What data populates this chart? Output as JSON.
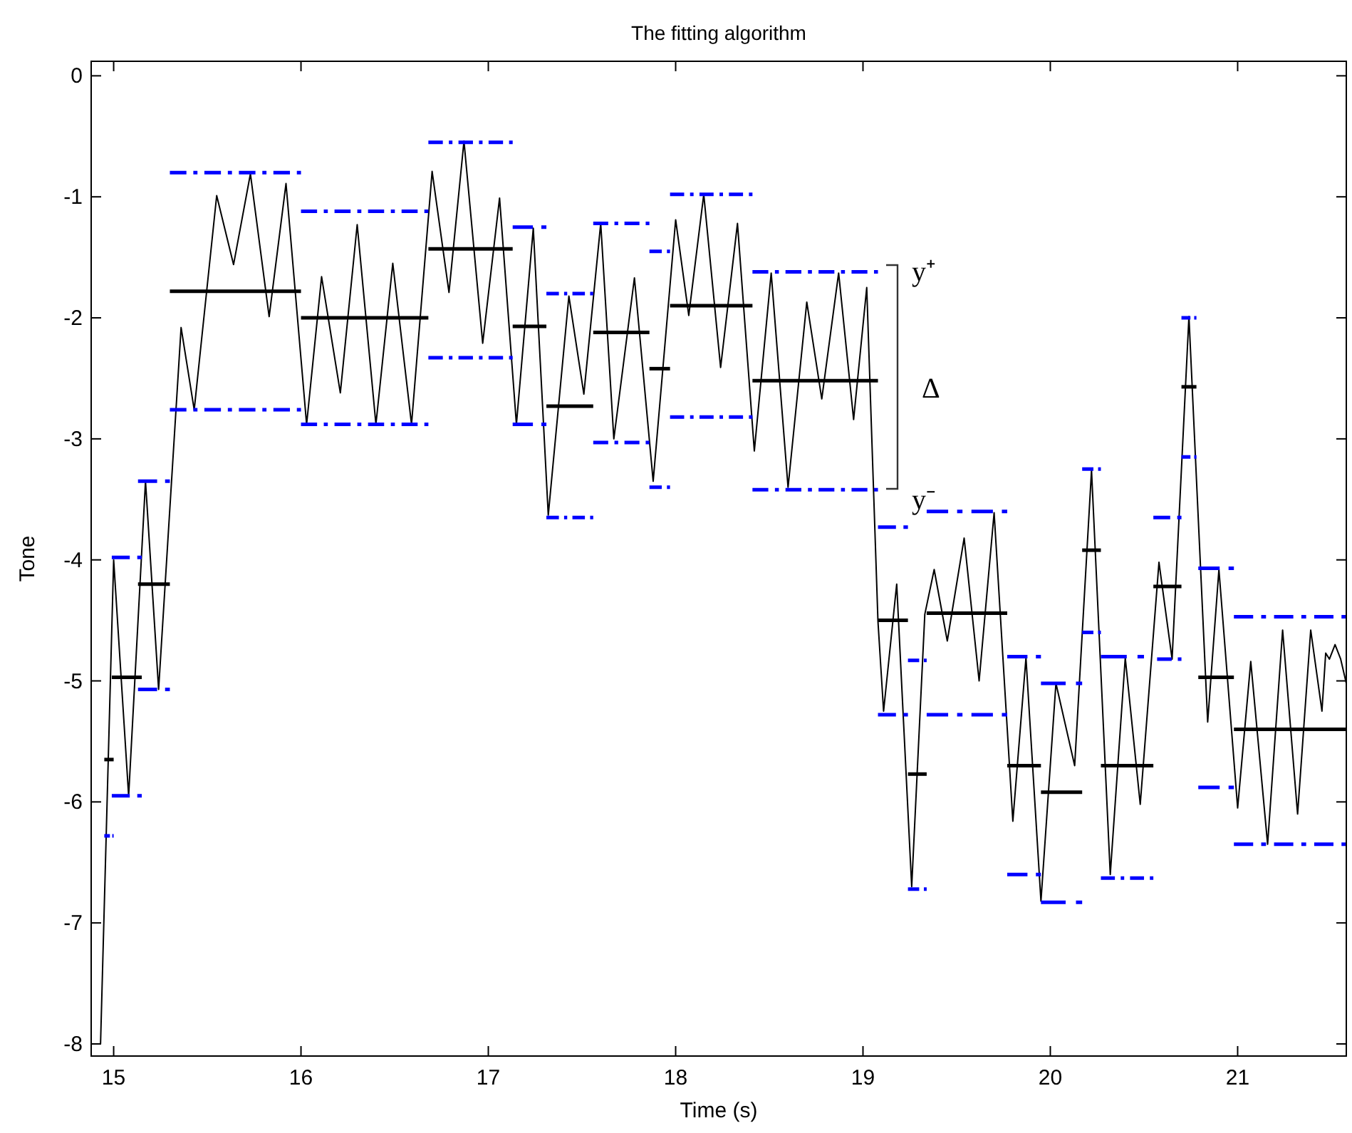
{
  "chart_data": {
    "type": "line",
    "title": "The fitting algorithm",
    "xlabel": "Time (s)",
    "ylabel": "Tone",
    "xlim": [
      14.88,
      21.58
    ],
    "xticks": [
      15,
      16,
      17,
      18,
      19,
      20,
      21
    ],
    "ylim": [
      -8.1,
      0.12
    ],
    "yticks": [
      -8,
      -7,
      -6,
      -5,
      -4,
      -3,
      -2,
      -1,
      0
    ],
    "marker": "none",
    "grid": false,
    "annotations": [
      "y⁺",
      "Δ",
      "y⁻"
    ],
    "series": [
      {
        "color": "#000000",
        "line_style": "solid",
        "x": [
          14.93,
          15.0,
          15.08,
          15.17,
          15.24,
          15.36,
          15.43,
          15.55,
          15.64,
          15.73,
          15.83,
          15.92,
          16.03,
          16.11,
          16.21,
          16.3,
          16.4,
          16.49,
          16.59,
          16.7,
          16.79,
          16.87,
          16.97,
          17.06,
          17.15,
          17.24,
          17.32,
          17.43,
          17.51,
          17.6,
          17.67,
          17.78,
          17.88,
          18.0,
          18.07,
          18.15,
          18.24,
          18.33,
          18.42,
          18.51,
          18.6,
          18.7,
          18.78,
          18.87,
          18.95,
          19.02,
          19.08,
          19.11,
          19.18,
          19.26,
          19.33,
          19.38,
          19.45,
          19.54,
          19.62,
          19.7,
          19.8,
          19.87,
          19.95,
          20.03,
          20.13,
          20.22,
          20.32,
          20.4,
          20.48,
          20.58,
          20.65,
          20.74,
          20.84,
          20.9,
          21.0,
          21.07,
          21.16,
          21.24,
          21.32,
          21.39,
          21.45,
          21.47,
          21.49,
          21.52,
          21.55,
          21.58
        ],
        "values": [
          -8.0,
          -4.0,
          -5.95,
          -3.35,
          -5.07,
          -2.08,
          -2.76,
          -0.99,
          -1.56,
          -0.81,
          -1.99,
          -0.89,
          -2.88,
          -1.66,
          -2.62,
          -1.23,
          -2.88,
          -1.55,
          -2.88,
          -0.79,
          -1.79,
          -0.54,
          -2.21,
          -1.01,
          -2.88,
          -1.26,
          -3.63,
          -1.82,
          -2.63,
          -1.22,
          -3.0,
          -1.67,
          -3.35,
          -1.19,
          -1.98,
          -0.98,
          -2.41,
          -1.22,
          -3.1,
          -1.63,
          -3.4,
          -1.87,
          -2.67,
          -1.63,
          -2.84,
          -1.75,
          -4.51,
          -5.25,
          -4.2,
          -6.7,
          -4.45,
          -4.08,
          -4.67,
          -3.82,
          -5.0,
          -3.61,
          -6.16,
          -4.81,
          -6.82,
          -5.02,
          -5.7,
          -3.26,
          -6.6,
          -4.81,
          -6.02,
          -4.02,
          -4.82,
          -1.99,
          -5.34,
          -4.08,
          -6.05,
          -4.84,
          -6.35,
          -4.58,
          -6.1,
          -4.58,
          -5.25,
          -4.77,
          -4.82,
          -4.7,
          -4.82,
          -5.02
        ]
      },
      {
        "color": "#000000",
        "line_style": "solid",
        "x": [
          14.95,
          15.0
        ],
        "values": [
          -5.65,
          -5.65
        ]
      },
      {
        "color": "#000000",
        "line_style": "solid",
        "x": [
          14.99,
          15.15
        ],
        "values": [
          -4.97,
          -4.97
        ]
      },
      {
        "color": "#000000",
        "line_style": "solid",
        "x": [
          15.13,
          15.3
        ],
        "values": [
          -4.2,
          -4.2
        ]
      },
      {
        "color": "#000000",
        "line_style": "solid",
        "x": [
          15.3,
          16.0
        ],
        "values": [
          -1.78,
          -1.78
        ]
      },
      {
        "color": "#000000",
        "line_style": "solid",
        "x": [
          16.0,
          16.68
        ],
        "values": [
          -2.0,
          -2.0
        ]
      },
      {
        "color": "#000000",
        "line_style": "solid",
        "x": [
          16.68,
          17.13
        ],
        "values": [
          -1.43,
          -1.43
        ]
      },
      {
        "color": "#000000",
        "line_style": "solid",
        "x": [
          17.13,
          17.31
        ],
        "values": [
          -2.07,
          -2.07
        ]
      },
      {
        "color": "#000000",
        "line_style": "solid",
        "x": [
          17.31,
          17.56
        ],
        "values": [
          -2.73,
          -2.73
        ]
      },
      {
        "color": "#000000",
        "line_style": "solid",
        "x": [
          17.56,
          17.86
        ],
        "values": [
          -2.12,
          -2.12
        ]
      },
      {
        "color": "#000000",
        "line_style": "solid",
        "x": [
          17.86,
          17.97
        ],
        "values": [
          -2.42,
          -2.42
        ]
      },
      {
        "color": "#000000",
        "line_style": "solid",
        "x": [
          17.97,
          18.41
        ],
        "values": [
          -1.9,
          -1.9
        ]
      },
      {
        "color": "#000000",
        "line_style": "solid",
        "x": [
          18.41,
          19.08
        ],
        "values": [
          -2.52,
          -2.52
        ]
      },
      {
        "color": "#000000",
        "line_style": "solid",
        "x": [
          19.08,
          19.24
        ],
        "values": [
          -4.5,
          -4.5
        ]
      },
      {
        "color": "#000000",
        "line_style": "solid",
        "x": [
          19.24,
          19.34
        ],
        "values": [
          -5.77,
          -5.77
        ]
      },
      {
        "color": "#000000",
        "line_style": "solid",
        "x": [
          19.34,
          19.77
        ],
        "values": [
          -4.44,
          -4.44
        ]
      },
      {
        "color": "#000000",
        "line_style": "solid",
        "x": [
          19.77,
          19.95
        ],
        "values": [
          -5.7,
          -5.7
        ]
      },
      {
        "color": "#000000",
        "line_style": "solid",
        "x": [
          19.95,
          20.17
        ],
        "values": [
          -5.92,
          -5.92
        ]
      },
      {
        "color": "#000000",
        "line_style": "solid",
        "x": [
          20.17,
          20.27
        ],
        "values": [
          -3.92,
          -3.92
        ]
      },
      {
        "color": "#000000",
        "line_style": "solid",
        "x": [
          20.27,
          20.55
        ],
        "values": [
          -5.7,
          -5.7
        ]
      },
      {
        "color": "#000000",
        "line_style": "solid",
        "x": [
          20.55,
          20.7
        ],
        "values": [
          -4.22,
          -4.22
        ]
      },
      {
        "color": "#000000",
        "line_style": "solid",
        "x": [
          20.7,
          20.78
        ],
        "values": [
          -2.57,
          -2.57
        ]
      },
      {
        "color": "#000000",
        "line_style": "solid",
        "x": [
          20.79,
          20.98
        ],
        "values": [
          -4.97,
          -4.97
        ]
      },
      {
        "color": "#000000",
        "line_style": "solid",
        "x": [
          20.98,
          21.58
        ],
        "values": [
          -5.4,
          -5.4
        ]
      },
      {
        "color": "#0000ff",
        "line_style": "dashed",
        "x": [
          14.99,
          15.15
        ],
        "values": [
          -3.98,
          -3.98
        ]
      },
      {
        "color": "#0000ff",
        "line_style": "dashed",
        "x": [
          15.13,
          15.3
        ],
        "values": [
          -3.35,
          -3.35
        ]
      },
      {
        "color": "#0000ff",
        "line_style": "dashed",
        "x": [
          15.3,
          16.0
        ],
        "values": [
          -0.8,
          -0.8
        ]
      },
      {
        "color": "#0000ff",
        "line_style": "dashed",
        "x": [
          16.0,
          16.68
        ],
        "values": [
          -1.12,
          -1.12
        ]
      },
      {
        "color": "#0000ff",
        "line_style": "dashed",
        "x": [
          16.68,
          17.13
        ],
        "values": [
          -0.55,
          -0.55
        ]
      },
      {
        "color": "#0000ff",
        "line_style": "dashed",
        "x": [
          17.13,
          17.31
        ],
        "values": [
          -1.25,
          -1.25
        ]
      },
      {
        "color": "#0000ff",
        "line_style": "dashed",
        "x": [
          17.31,
          17.56
        ],
        "values": [
          -1.8,
          -1.8
        ]
      },
      {
        "color": "#0000ff",
        "line_style": "dashed",
        "x": [
          17.56,
          17.86
        ],
        "values": [
          -1.22,
          -1.22
        ]
      },
      {
        "color": "#0000ff",
        "line_style": "dashed",
        "x": [
          17.86,
          17.97
        ],
        "values": [
          -1.45,
          -1.45
        ]
      },
      {
        "color": "#0000ff",
        "line_style": "dashed",
        "x": [
          17.97,
          18.41
        ],
        "values": [
          -0.98,
          -0.98
        ]
      },
      {
        "color": "#0000ff",
        "line_style": "dashed",
        "x": [
          18.41,
          19.08
        ],
        "values": [
          -1.62,
          -1.62
        ]
      },
      {
        "color": "#0000ff",
        "line_style": "dashed",
        "x": [
          19.08,
          19.24
        ],
        "values": [
          -3.73,
          -3.73
        ]
      },
      {
        "color": "#0000ff",
        "line_style": "dashed",
        "x": [
          19.24,
          19.34
        ],
        "values": [
          -4.83,
          -4.83
        ]
      },
      {
        "color": "#0000ff",
        "line_style": "dashed",
        "x": [
          19.34,
          19.77
        ],
        "values": [
          -3.6,
          -3.6
        ]
      },
      {
        "color": "#0000ff",
        "line_style": "dashed",
        "x": [
          19.77,
          19.95
        ],
        "values": [
          -4.8,
          -4.8
        ]
      },
      {
        "color": "#0000ff",
        "line_style": "dashed",
        "x": [
          19.95,
          20.17
        ],
        "values": [
          -5.02,
          -5.02
        ]
      },
      {
        "color": "#0000ff",
        "line_style": "dashed",
        "x": [
          20.17,
          20.27
        ],
        "values": [
          -3.25,
          -3.25
        ]
      },
      {
        "color": "#0000ff",
        "line_style": "dashed",
        "x": [
          20.27,
          20.5
        ],
        "values": [
          -4.8,
          -4.8
        ]
      },
      {
        "color": "#0000ff",
        "line_style": "dashed",
        "x": [
          20.55,
          20.7
        ],
        "values": [
          -3.65,
          -3.65
        ]
      },
      {
        "color": "#0000ff",
        "line_style": "dashed",
        "x": [
          20.7,
          20.78
        ],
        "values": [
          -2.0,
          -2.0
        ]
      },
      {
        "color": "#0000ff",
        "line_style": "dashed",
        "x": [
          20.79,
          20.98
        ],
        "values": [
          -4.07,
          -4.07
        ]
      },
      {
        "color": "#0000ff",
        "line_style": "dashed",
        "x": [
          20.98,
          21.58
        ],
        "values": [
          -4.47,
          -4.47
        ]
      },
      {
        "color": "#0000ff",
        "line_style": "dashed",
        "x": [
          14.95,
          15.0
        ],
        "values": [
          -6.28,
          -6.28
        ]
      },
      {
        "color": "#0000ff",
        "line_style": "dashed",
        "x": [
          14.99,
          15.15
        ],
        "values": [
          -5.95,
          -5.95
        ]
      },
      {
        "color": "#0000ff",
        "line_style": "dashed",
        "x": [
          15.13,
          15.3
        ],
        "values": [
          -5.07,
          -5.07
        ]
      },
      {
        "color": "#0000ff",
        "line_style": "dashed",
        "x": [
          15.3,
          16.0
        ],
        "values": [
          -2.76,
          -2.76
        ]
      },
      {
        "color": "#0000ff",
        "line_style": "dashed",
        "x": [
          16.0,
          16.68
        ],
        "values": [
          -2.88,
          -2.88
        ]
      },
      {
        "color": "#0000ff",
        "line_style": "dashed",
        "x": [
          16.68,
          17.13
        ],
        "values": [
          -2.33,
          -2.33
        ]
      },
      {
        "color": "#0000ff",
        "line_style": "dashed",
        "x": [
          17.13,
          17.31
        ],
        "values": [
          -2.88,
          -2.88
        ]
      },
      {
        "color": "#0000ff",
        "line_style": "dashed",
        "x": [
          17.31,
          17.56
        ],
        "values": [
          -3.65,
          -3.65
        ]
      },
      {
        "color": "#0000ff",
        "line_style": "dashed",
        "x": [
          17.56,
          17.86
        ],
        "values": [
          -3.03,
          -3.03
        ]
      },
      {
        "color": "#0000ff",
        "line_style": "dashed",
        "x": [
          17.86,
          17.97
        ],
        "values": [
          -3.4,
          -3.4
        ]
      },
      {
        "color": "#0000ff",
        "line_style": "dashed",
        "x": [
          17.97,
          18.41
        ],
        "values": [
          -2.82,
          -2.82
        ]
      },
      {
        "color": "#0000ff",
        "line_style": "dashed",
        "x": [
          18.41,
          19.08
        ],
        "values": [
          -3.42,
          -3.42
        ]
      },
      {
        "color": "#0000ff",
        "line_style": "dashed",
        "x": [
          19.08,
          19.24
        ],
        "values": [
          -5.28,
          -5.28
        ]
      },
      {
        "color": "#0000ff",
        "line_style": "dashed",
        "x": [
          19.24,
          19.34
        ],
        "values": [
          -6.72,
          -6.72
        ]
      },
      {
        "color": "#0000ff",
        "line_style": "dashed",
        "x": [
          19.34,
          19.77
        ],
        "values": [
          -5.28,
          -5.28
        ]
      },
      {
        "color": "#0000ff",
        "line_style": "dashed",
        "x": [
          19.77,
          19.95
        ],
        "values": [
          -6.6,
          -6.6
        ]
      },
      {
        "color": "#0000ff",
        "line_style": "dashed",
        "x": [
          19.95,
          20.17
        ],
        "values": [
          -6.83,
          -6.83
        ]
      },
      {
        "color": "#0000ff",
        "line_style": "dashed",
        "x": [
          20.17,
          20.27
        ],
        "values": [
          -4.6,
          -4.6
        ]
      },
      {
        "color": "#0000ff",
        "line_style": "dashed",
        "x": [
          20.27,
          20.55
        ],
        "values": [
          -6.63,
          -6.63
        ]
      },
      {
        "color": "#0000ff",
        "line_style": "dashed",
        "x": [
          20.57,
          20.7
        ],
        "values": [
          -4.82,
          -4.82
        ]
      },
      {
        "color": "#0000ff",
        "line_style": "dashed",
        "x": [
          20.7,
          20.78
        ],
        "values": [
          -3.15,
          -3.15
        ]
      },
      {
        "color": "#0000ff",
        "line_style": "dashed",
        "x": [
          20.79,
          20.98
        ],
        "values": [
          -5.88,
          -5.88
        ]
      },
      {
        "color": "#0000ff",
        "line_style": "dashed",
        "x": [
          20.98,
          21.58
        ],
        "values": [
          -6.35,
          -6.35
        ]
      }
    ]
  }
}
